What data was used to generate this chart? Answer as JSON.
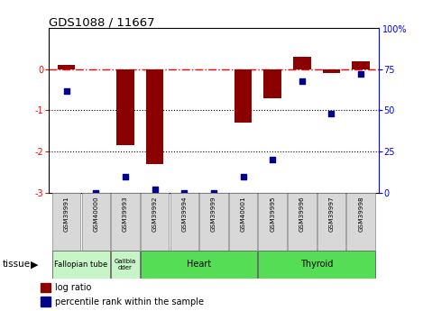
{
  "title": "GDS1088 / 11667",
  "samples": [
    "GSM39991",
    "GSM40000",
    "GSM39993",
    "GSM39992",
    "GSM39994",
    "GSM39999",
    "GSM40001",
    "GSM39995",
    "GSM39996",
    "GSM39997",
    "GSM39998"
  ],
  "log_ratio": [
    0.1,
    0.0,
    -1.85,
    -2.3,
    0.0,
    0.0,
    -1.3,
    -0.7,
    0.3,
    -0.1,
    0.2
  ],
  "pct_rank": [
    62,
    0,
    10,
    2,
    0,
    0,
    10,
    20,
    68,
    48,
    72
  ],
  "bar_color": "#8B0000",
  "dot_color": "#00008B",
  "ylim_left": [
    -3,
    1
  ],
  "ylim_right": [
    0,
    100
  ],
  "yticks_left": [
    0,
    -1,
    -2,
    -3
  ],
  "ytick_labels_left": [
    "0",
    "-1",
    "-2",
    "-3"
  ],
  "yticks_right": [
    75,
    50,
    25,
    0
  ],
  "ytick_labels_right": [
    "75",
    "50",
    "25",
    "0"
  ],
  "ytick_top_right": "100%",
  "dotted_lines": [
    -1,
    -2
  ],
  "tissues": [
    {
      "label": "Fallopian tube",
      "start": 0,
      "end": 1,
      "color": "#C8F0C8"
    },
    {
      "label": "Gallbla\ndder",
      "start": 2,
      "end": 2,
      "color": "#C8F0C8"
    },
    {
      "label": "Heart",
      "start": 3,
      "end": 6,
      "color": "#66DD66"
    },
    {
      "label": "Thyroid",
      "start": 7,
      "end": 10,
      "color": "#66DD66"
    }
  ],
  "legend_bar_label": "log ratio",
  "legend_dot_label": "percentile rank within the sample"
}
